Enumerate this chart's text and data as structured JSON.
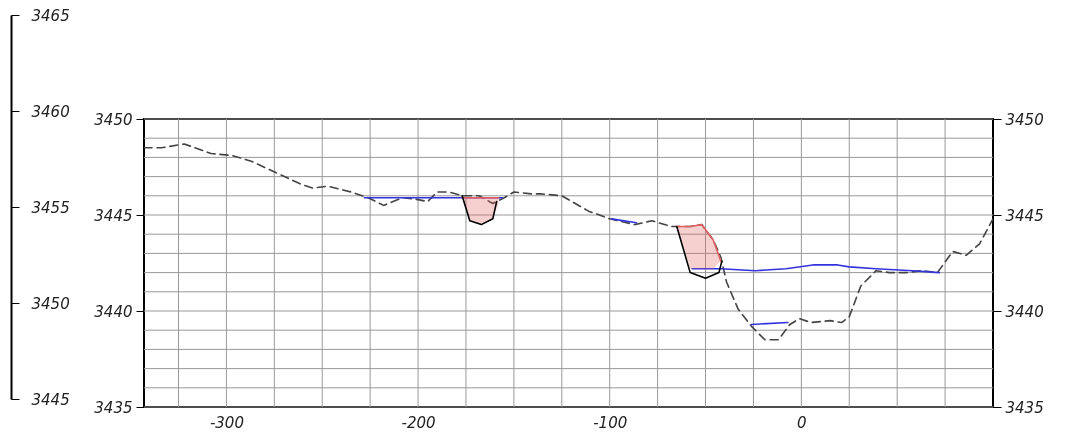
{
  "chart_data": {
    "type": "line",
    "xlim": [
      -343,
      100
    ],
    "xticks": [
      {
        "value": -325,
        "label": null
      },
      -300,
      {
        "value": -275,
        "label": null
      },
      {
        "value": -250,
        "label": null
      },
      {
        "value": -225,
        "label": null
      },
      -200,
      {
        "value": -175,
        "label": null
      },
      {
        "value": -150,
        "label": null
      },
      {
        "value": -125,
        "label": null
      },
      -100,
      {
        "value": -75,
        "label": null
      },
      {
        "value": -50,
        "label": null
      },
      {
        "value": -25,
        "label": null
      },
      0,
      {
        "value": 25,
        "label": null
      },
      {
        "value": 50,
        "label": null
      },
      {
        "value": 75,
        "label": null
      }
    ],
    "ylim": [
      3435,
      3450
    ],
    "yticks": [
      3435,
      {
        "value": 3436,
        "label": null
      },
      {
        "value": 3437,
        "label": null
      },
      {
        "value": 3438,
        "label": null
      },
      {
        "value": 3439,
        "label": null
      },
      3440,
      {
        "value": 3441,
        "label": null
      },
      {
        "value": 3442,
        "label": null
      },
      {
        "value": 3443,
        "label": null
      },
      {
        "value": 3444,
        "label": null
      },
      3445,
      {
        "value": 3446,
        "label": null
      },
      {
        "value": 3447,
        "label": null
      },
      {
        "value": 3448,
        "label": null
      },
      {
        "value": 3449,
        "label": null
      },
      3450
    ],
    "y2lim": [
      3435,
      3450
    ],
    "y2ticks": [
      3435,
      3440,
      3445,
      3450
    ],
    "y3lim": [
      3445,
      3465
    ],
    "y3ticks": [
      3445,
      3450,
      3455,
      3460,
      3465
    ],
    "grid": true,
    "series": [
      {
        "color": "#444444",
        "line_style": "dashed",
        "x": [
          -343,
          -334,
          -322,
          -308,
          -297,
          -287,
          -274,
          -261,
          -255,
          -247,
          -235,
          -226,
          -218,
          -208,
          -200,
          -195,
          -190,
          -184,
          -177,
          -168,
          -161,
          -155,
          -150,
          -141,
          -136,
          -125,
          -111,
          -100,
          -87,
          -78,
          -68,
          -58,
          -52,
          -46,
          -42,
          -39,
          -33,
          -26,
          -19,
          -12,
          -6,
          -1,
          5,
          15,
          21,
          25,
          31,
          39,
          46,
          55,
          63,
          71,
          79,
          86,
          93,
          100
        ],
        "values": [
          3448.5,
          3448.5,
          3448.7,
          3448.2,
          3448.1,
          3447.8,
          3447.2,
          3446.6,
          3446.4,
          3446.5,
          3446.2,
          3445.9,
          3445.5,
          3445.9,
          3445.8,
          3445.7,
          3446.2,
          3446.2,
          3446.0,
          3446.0,
          3445.6,
          3445.9,
          3446.2,
          3446.1,
          3446.1,
          3446.0,
          3445.2,
          3444.8,
          3444.5,
          3444.7,
          3444.4,
          3444.4,
          3444.5,
          3443.7,
          3442.8,
          3441.5,
          3440.1,
          3439.2,
          3438.5,
          3438.5,
          3439.3,
          3439.6,
          3439.4,
          3439.5,
          3439.4,
          3439.7,
          3441.3,
          3442.1,
          3442.0,
          3442.0,
          3442.1,
          3442.0,
          3443.1,
          3442.9,
          3443.5,
          3444.8
        ]
      },
      {
        "color": "#3333dd",
        "x": [
          -228,
          -156,
          -130,
          -99,
          -86,
          -70,
          -57,
          -42,
          -24,
          -8,
          6,
          19,
          25,
          39,
          58,
          72,
          30,
          -26,
          -7
        ],
        "values": [
          3445.9,
          3445.9,
          null,
          3444.8,
          3444.6,
          null,
          3442.2,
          3442.2,
          3442.1,
          3442.2,
          3442.4,
          3442.4,
          3442.3,
          3442.2,
          3442.1,
          3442.0,
          null,
          3439.3,
          3439.4
        ]
      },
      {
        "color": "#e06060",
        "x": [
          -177,
          -173,
          -167,
          -161,
          -158
        ],
        "values": [
          3445.9,
          3445.9,
          3445.9,
          3445.9,
          3445.9
        ],
        "upper": [
          3445.9,
          3445.9,
          3445.9,
          3445.9,
          3445.9
        ],
        "lower": [
          3445.9,
          3444.7,
          3444.5,
          3444.8,
          3445.6
        ]
      },
      {
        "color": "#e06060",
        "x": [
          -65,
          -58,
          -52,
          -46,
          -42
        ],
        "values": [
          3444.4,
          3444.4,
          3444.5,
          3443.7,
          3442.6
        ],
        "upper": [
          3444.4,
          3444.4,
          3444.5,
          3443.7,
          3442.6
        ],
        "lower": [
          3444.4,
          3442.2,
          3442.2,
          3442.2,
          3442.6
        ]
      },
      {
        "color": "#000000",
        "x": [
          -177,
          -173,
          -167,
          -161,
          -159,
          -100,
          -65,
          -58,
          -50,
          -43,
          -41.5
        ],
        "values": [
          3446.0,
          3444.7,
          3444.5,
          3444.8,
          3445.7,
          null,
          3444.4,
          3442.0,
          3441.7,
          3442.0,
          3442.6
        ]
      }
    ]
  }
}
